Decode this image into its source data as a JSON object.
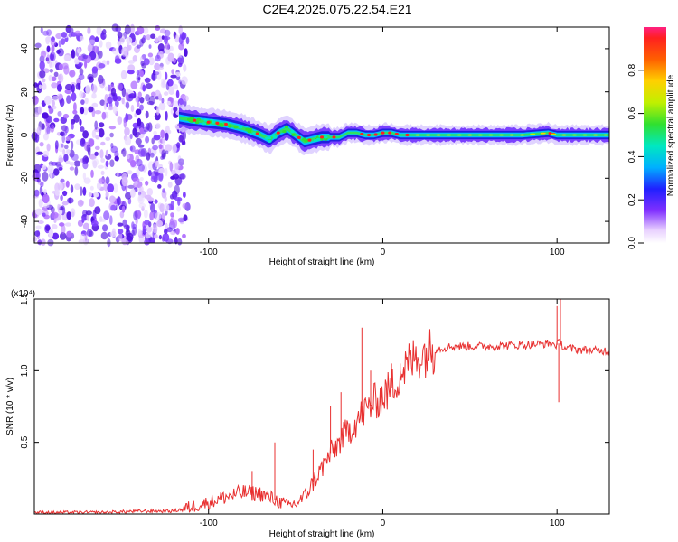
{
  "title": "C2E4.2025.075.22.54.E21",
  "chart_data": [
    {
      "type": "heatmap",
      "name": "spectrogram",
      "xlabel": "Height of straight line (km)",
      "ylabel": "Frequency (Hz)",
      "xlim": [
        -200,
        130
      ],
      "ylim": [
        -50,
        50
      ],
      "xticks": [
        -100,
        0,
        100
      ],
      "xtick_labels": [
        "-100",
        "0",
        "100"
      ],
      "yticks": [
        -40,
        -20,
        0,
        20,
        40
      ],
      "ytick_labels": [
        "-40",
        "-20",
        "0",
        "20",
        "40"
      ],
      "noise_region_x": [
        -200,
        -112
      ],
      "signal_start_x": -117,
      "signal_track": {
        "x": [
          -117,
          -110,
          -100,
          -90,
          -80,
          -70,
          -65,
          -60,
          -55,
          -50,
          -45,
          -40,
          -35,
          -30,
          -25,
          -20,
          -15,
          -10,
          -5,
          0,
          5,
          10,
          20,
          40,
          60,
          80,
          95,
          100,
          110,
          130
        ],
        "frequency": [
          8,
          7,
          6,
          5,
          3,
          0,
          -2,
          1,
          3,
          0,
          -3,
          -2,
          -1,
          -1,
          -1,
          1,
          1,
          0,
          0,
          1,
          1,
          0,
          0,
          0,
          0,
          0,
          1,
          0,
          0,
          0
        ]
      },
      "colorbar": {
        "label": "Normalized spectral amplitude",
        "range": [
          0,
          1
        ],
        "ticks": [
          0,
          0.2,
          0.4,
          0.6,
          0.8
        ],
        "tick_labels": [
          "0.0",
          "0.2",
          "0.4",
          "0.6",
          "0.8"
        ]
      }
    },
    {
      "type": "line",
      "name": "snr",
      "xlabel": "Height of straight line (km)",
      "ylabel": "SNR (10 * v/v)",
      "y_multiplier": "(x10⁴)",
      "xlim": [
        -200,
        130
      ],
      "ylim": [
        0,
        1.5
      ],
      "xticks": [
        -100,
        0,
        100
      ],
      "xtick_labels": [
        "-100",
        "0",
        "100"
      ],
      "yticks": [
        0.5,
        1.0,
        1.5
      ],
      "ytick_labels": [
        "0.5",
        "1.0",
        "1.5"
      ],
      "color": "#e83030",
      "series": [
        {
          "name": "SNR",
          "x": [
            -200,
            -180,
            -160,
            -140,
            -120,
            -110,
            -100,
            -90,
            -80,
            -70,
            -62,
            -55,
            -50,
            -45,
            -40,
            -35,
            -30,
            -25,
            -20,
            -15,
            -10,
            -5,
            0,
            5,
            10,
            15,
            20,
            30,
            40,
            60,
            80,
            95,
            100,
            102,
            104,
            110,
            120,
            130
          ],
          "y": [
            0.01,
            0.01,
            0.01,
            0.02,
            0.02,
            0.05,
            0.08,
            0.12,
            0.15,
            0.14,
            0.1,
            0.06,
            0.07,
            0.12,
            0.22,
            0.32,
            0.42,
            0.5,
            0.58,
            0.65,
            0.72,
            0.78,
            0.82,
            0.88,
            0.98,
            1.05,
            1.1,
            1.15,
            1.17,
            1.17,
            1.18,
            1.19,
            1.18,
            1.2,
            1.16,
            1.15,
            1.14,
            1.14
          ]
        }
      ],
      "spikes": {
        "x": [
          -75,
          -62,
          -55,
          -40,
          -30,
          -24,
          -12,
          -7,
          5,
          10,
          100,
          101,
          102
        ],
        "y": [
          0.3,
          0.5,
          0.25,
          0.45,
          0.75,
          0.85,
          1.3,
          1.0,
          1.05,
          1.05,
          1.45,
          0.78,
          1.53
        ]
      }
    }
  ],
  "colors": {
    "line": "#e83030",
    "axis": "#000000"
  }
}
